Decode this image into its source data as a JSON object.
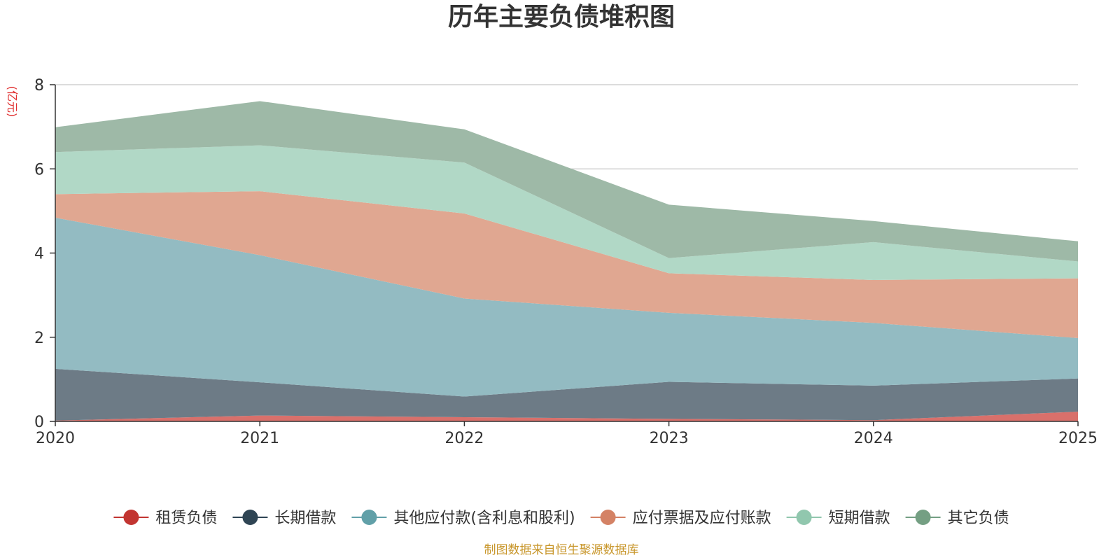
{
  "chart_data": {
    "type": "area",
    "stacked": true,
    "title": "历年主要负债堆积图",
    "ylabel": "(亿元)",
    "xlabel": "",
    "x": [
      "2020",
      "2021",
      "2022",
      "2023",
      "2024",
      "2025"
    ],
    "ylim": [
      0,
      8
    ],
    "yticks": [
      "0",
      "2",
      "4",
      "6",
      "8"
    ],
    "grid": true,
    "legend_position": "bottom",
    "series": [
      {
        "name": "租赁负债",
        "color": "#c23531",
        "fill": "#d9706b",
        "values": [
          0.02,
          0.14,
          0.1,
          0.06,
          0.03,
          0.23
        ]
      },
      {
        "name": "长期借款",
        "color": "#2f4554",
        "fill": "#6d7b86",
        "values": [
          1.23,
          0.79,
          0.49,
          0.88,
          0.82,
          0.79
        ]
      },
      {
        "name": "其他应付款(含利息和股利)",
        "color": "#61a0a8",
        "fill": "#93bbc2",
        "values": [
          3.59,
          3.02,
          2.33,
          1.64,
          1.49,
          0.96
        ]
      },
      {
        "name": "应付票据及应付账款",
        "color": "#d48265",
        "fill": "#e0a791",
        "values": [
          0.56,
          1.52,
          2.02,
          0.94,
          1.02,
          1.42
        ]
      },
      {
        "name": "短期借款",
        "color": "#91c7ae",
        "fill": "#b1d8c6",
        "values": [
          1.0,
          1.09,
          1.21,
          0.36,
          0.9,
          0.4
        ]
      },
      {
        "name": "其它负债",
        "color": "#749f83",
        "fill": "#9eb9a7",
        "values": [
          0.59,
          1.05,
          0.79,
          1.27,
          0.5,
          0.48
        ]
      }
    ]
  },
  "footer": {
    "source": "制图数据来自恒生聚源数据库",
    "color": "#c8962a"
  },
  "unit_color": "#e03030"
}
